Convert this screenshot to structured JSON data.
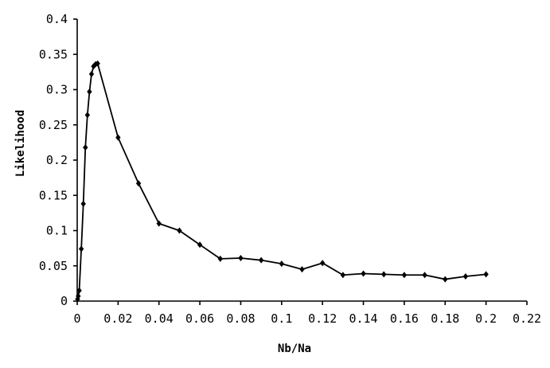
{
  "chart_data": {
    "type": "line",
    "title": "",
    "xlabel": "Nb/Na",
    "ylabel": "Likelihood",
    "xlim": [
      0,
      0.22
    ],
    "ylim": [
      0,
      0.4
    ],
    "x_ticks": [
      0,
      0.02,
      0.04,
      0.06,
      0.08,
      0.1,
      0.12,
      0.14,
      0.16,
      0.18,
      0.2,
      0.22
    ],
    "x_tick_labels": [
      "0",
      "0.02",
      "0.04",
      "0.06",
      "0.08",
      "0.1",
      "0.12",
      "0.14",
      "0.16",
      "0.18",
      "0.2",
      "0.22"
    ],
    "y_ticks": [
      0,
      0.05,
      0.1,
      0.15,
      0.2,
      0.25,
      0.3,
      0.35,
      0.4
    ],
    "y_tick_labels": [
      "0",
      "0.05",
      "0.1",
      "0.15",
      "0.2",
      "0.25",
      "0.3",
      "0.35",
      "0.4"
    ],
    "grid": false,
    "legend": "none",
    "marker": "diamond",
    "series": [
      {
        "x": [
          0.0002,
          0.0005,
          0.001,
          0.002,
          0.003,
          0.004,
          0.005,
          0.006,
          0.007,
          0.008,
          0.009,
          0.01,
          0.02,
          0.03,
          0.04,
          0.05,
          0.06,
          0.07,
          0.08,
          0.09,
          0.1,
          0.11,
          0.12,
          0.13,
          0.14,
          0.15,
          0.16,
          0.17,
          0.18,
          0.19,
          0.2
        ],
        "y": [
          0.003,
          0.007,
          0.015,
          0.074,
          0.138,
          0.218,
          0.264,
          0.297,
          0.322,
          0.333,
          0.336,
          0.337,
          0.232,
          0.167,
          0.11,
          0.1,
          0.08,
          0.06,
          0.061,
          0.058,
          0.053,
          0.045,
          0.054,
          0.037,
          0.039,
          0.038,
          0.037,
          0.037,
          0.031,
          0.035,
          0.038
        ]
      }
    ]
  }
}
